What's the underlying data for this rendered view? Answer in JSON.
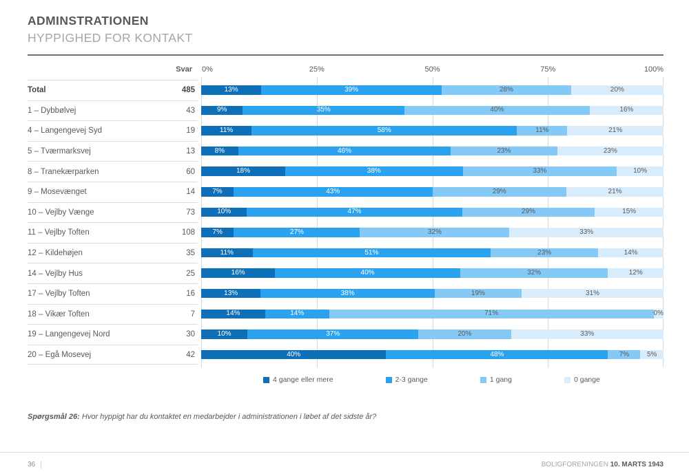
{
  "header": {
    "title": "ADMINSTRATIONEN",
    "subtitle": "HYPPIGHED FOR KONTAKT"
  },
  "axis": {
    "svar_label": "Svar",
    "ticks": [
      "0%",
      "25%",
      "50%",
      "75%",
      "100%"
    ]
  },
  "legend": [
    {
      "key": "4-gange-eller-mere",
      "label": "4 gange eller mere",
      "color": "#0e6fb8"
    },
    {
      "key": "2-3-gange",
      "label": "2-3 gange",
      "color": "#2aa2f0"
    },
    {
      "key": "1-gang",
      "label": "1 gang",
      "color": "#85c9f6"
    },
    {
      "key": "0-gange",
      "label": "0 gange",
      "color": "#d9ecfb"
    }
  ],
  "chart_data": {
    "type": "bar",
    "orientation": "horizontal-stacked",
    "title": "ADMINSTRATIONEN — HYPPIGHED FOR KONTAKT",
    "xlabel": "",
    "ylabel": "",
    "xlim": [
      0,
      100
    ],
    "grid": true,
    "legend_position": "bottom",
    "unit": "%",
    "svar_header": "Svar",
    "categories": [
      "Total",
      "1 – Dybbølvej",
      "4 – Langengevej Syd",
      "5 – Tværmarksvej",
      "8 – Tranekærparken",
      "9 – Mosevænget",
      "10 – Vejlby Vænge",
      "11 – Vejlby Toften",
      "12 – Kildehøjen",
      "14 – Vejlby Hus",
      "17 – Vejlby Toften",
      "18 – Vikær Toften",
      "19 – Langengevej Nord",
      "20 – Egå Mosevej"
    ],
    "svar": [
      485,
      43,
      19,
      13,
      60,
      14,
      73,
      108,
      35,
      25,
      16,
      7,
      30,
      42
    ],
    "series": [
      {
        "key": "4-gange-eller-mere",
        "name": "4 gange eller mere",
        "color": "#0e6fb8",
        "values": [
          13,
          9,
          11,
          8,
          18,
          7,
          10,
          7,
          11,
          16,
          13,
          14,
          10,
          40
        ]
      },
      {
        "key": "2-3-gange",
        "name": "2-3 gange",
        "color": "#2aa2f0",
        "values": [
          39,
          35,
          58,
          46,
          38,
          43,
          47,
          27,
          51,
          40,
          38,
          14,
          37,
          48
        ]
      },
      {
        "key": "1-gang",
        "name": "1 gang",
        "color": "#85c9f6",
        "values": [
          28,
          40,
          11,
          23,
          33,
          29,
          29,
          32,
          23,
          32,
          19,
          71,
          20,
          7
        ]
      },
      {
        "key": "0-gange",
        "name": "0 gange",
        "color": "#d9ecfb",
        "values": [
          20,
          16,
          21,
          23,
          10,
          21,
          15,
          33,
          14,
          12,
          31,
          0,
          33,
          5
        ]
      }
    ]
  },
  "footer": {
    "question_label": "Spørgsmål 26:",
    "question_text": " Hvor hyppigt har du kontaktet en medarbejder i administrationen i løbet af det sidste år?",
    "page_number": "36",
    "org": "BOLIGFORENINGEN ",
    "date": "10. MARTS 1943"
  }
}
